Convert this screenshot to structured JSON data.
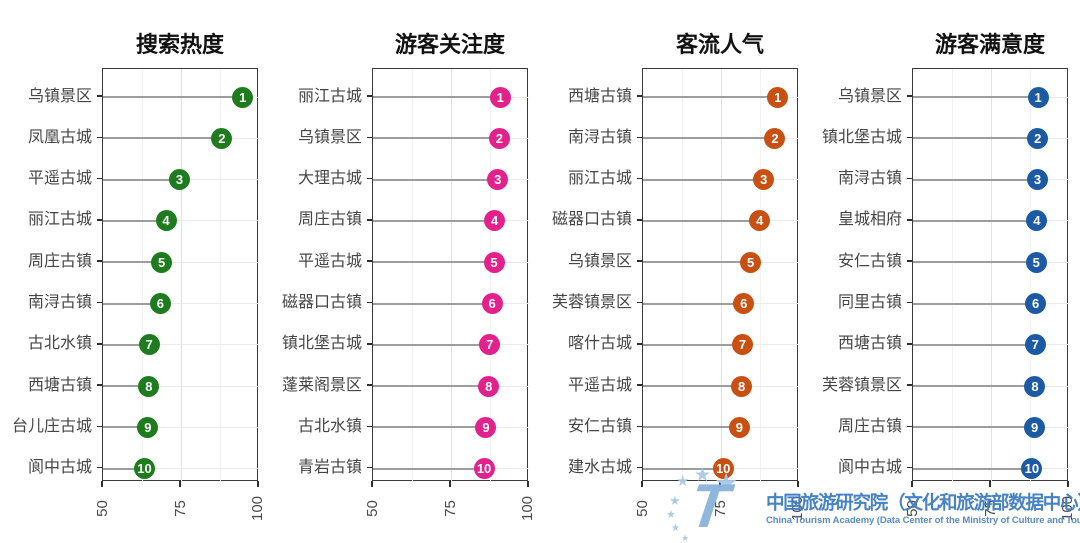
{
  "watermark": {
    "cn": "中国旅游研究院（文化和旅游部数据中心）",
    "en": "China Tourism Academy (Data Center of the Ministry of Culture and Tourism)",
    "logo_letter": "T",
    "star_glyph": "★"
  },
  "colors": {
    "search_heat": "#1e7b1e",
    "tourist_attention": "#e3218c",
    "visitor_flow": "#c85012",
    "satisfaction": "#1d5aa4",
    "stem": "#9d9d9d",
    "watermark_blue": "#3e7dc1"
  },
  "chart_data": [
    {
      "id": "search-heat",
      "type": "scatter",
      "title": "搜索热度",
      "color": "#1e7b1e",
      "xlim": [
        50,
        100
      ],
      "xticks": [
        50,
        75,
        100
      ],
      "legend_position": "none",
      "grid": true,
      "categories": [
        "乌镇景区",
        "凤凰古城",
        "平遥古城",
        "丽江古城",
        "周庄古镇",
        "南浔古镇",
        "古北水镇",
        "西塘古镇",
        "台儿庄古城",
        "阆中古城"
      ],
      "ranks": [
        1,
        2,
        3,
        4,
        5,
        6,
        7,
        8,
        9,
        10
      ],
      "values": [
        94.8,
        88.1,
        74.5,
        70.2,
        68.8,
        68.4,
        64.8,
        64.7,
        64.4,
        63.3
      ]
    },
    {
      "id": "tourist-attention",
      "type": "scatter",
      "title": "游客关注度",
      "color": "#e3218c",
      "xlim": [
        50,
        100
      ],
      "xticks": [
        50,
        75,
        100
      ],
      "legend_position": "none",
      "grid": true,
      "categories": [
        "丽江古城",
        "乌镇景区",
        "大理古城",
        "周庄古镇",
        "平遥古城",
        "磁器口古镇",
        "镇北堡古城",
        "蓬莱阁景区",
        "古北水镇",
        "青岩古镇"
      ],
      "ranks": [
        1,
        2,
        3,
        4,
        5,
        6,
        7,
        8,
        9,
        10
      ],
      "values": [
        90.8,
        90.5,
        90.0,
        89.0,
        88.8,
        88.2,
        87.4,
        87.1,
        86.2,
        85.6
      ]
    },
    {
      "id": "visitor-flow",
      "type": "scatter",
      "title": "客流人气",
      "color": "#c85012",
      "xlim": [
        50,
        100
      ],
      "xticks": [
        50,
        75,
        100
      ],
      "legend_position": "none",
      "grid": true,
      "categories": [
        "西塘古镇",
        "南浔古镇",
        "丽江古城",
        "磁器口古镇",
        "乌镇景区",
        "芙蓉镇景区",
        "喀什古城",
        "平遥古城",
        "安仁古镇",
        "建水古城"
      ],
      "ranks": [
        1,
        2,
        3,
        4,
        5,
        6,
        7,
        8,
        9,
        10
      ],
      "values": [
        93.2,
        92.3,
        88.7,
        87.4,
        84.5,
        82.3,
        81.9,
        81.6,
        80.9,
        75.7
      ]
    },
    {
      "id": "satisfaction",
      "type": "scatter",
      "title": "游客满意度",
      "color": "#1d5aa4",
      "xlim": [
        50,
        100
      ],
      "xticks": [
        50,
        75,
        100
      ],
      "legend_position": "none",
      "grid": true,
      "categories": [
        "乌镇景区",
        "镇北堡古城",
        "南浔古镇",
        "皇城相府",
        "安仁古镇",
        "同里古镇",
        "西塘古镇",
        "芙蓉镇景区",
        "周庄古镇",
        "阆中古城"
      ],
      "ranks": [
        1,
        2,
        3,
        4,
        5,
        6,
        7,
        8,
        9,
        10
      ],
      "values": [
        90.1,
        90.0,
        89.9,
        89.7,
        89.5,
        89.3,
        89.2,
        89.1,
        89.0,
        88.1
      ]
    }
  ]
}
